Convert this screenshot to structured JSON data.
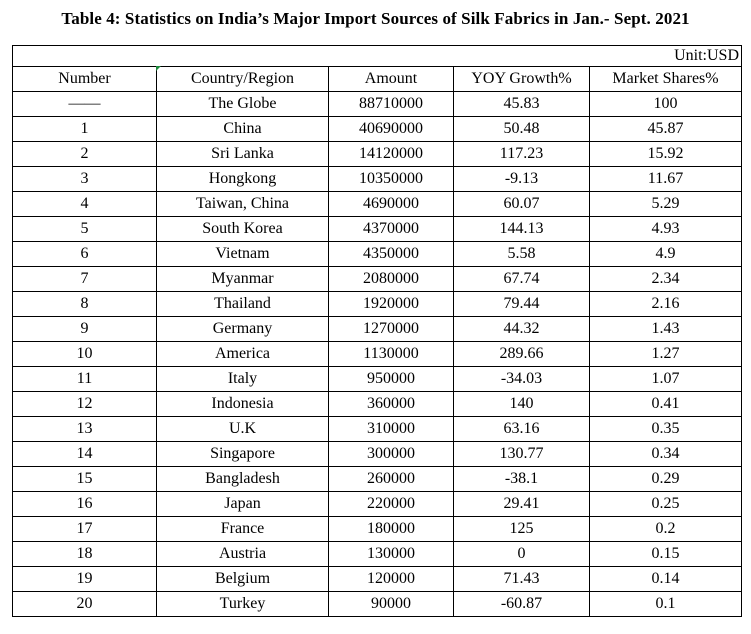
{
  "title": "Table 4: Statistics on India’s Major Import Sources of Silk Fabrics in Jan.- Sept. 2021",
  "unit": "Unit:USD",
  "headers": [
    "Number",
    "Country/Region",
    "Amount",
    "YOY Growth%",
    "Market Shares%"
  ],
  "rows": [
    [
      "——",
      "The Globe",
      "88710000",
      "45.83",
      "100"
    ],
    [
      "1",
      "China",
      "40690000",
      "50.48",
      "45.87"
    ],
    [
      "2",
      "Sri Lanka",
      "14120000",
      "117.23",
      "15.92"
    ],
    [
      "3",
      "Hongkong",
      "10350000",
      "-9.13",
      "11.67"
    ],
    [
      "4",
      "Taiwan, China",
      "4690000",
      "60.07",
      "5.29"
    ],
    [
      "5",
      "South Korea",
      "4370000",
      "144.13",
      "4.93"
    ],
    [
      "6",
      "Vietnam",
      "4350000",
      "5.58",
      "4.9"
    ],
    [
      "7",
      "Myanmar",
      "2080000",
      "67.74",
      "2.34"
    ],
    [
      "8",
      "Thailand",
      "1920000",
      "79.44",
      "2.16"
    ],
    [
      "9",
      "Germany",
      "1270000",
      "44.32",
      "1.43"
    ],
    [
      "10",
      "America",
      "1130000",
      "289.66",
      "1.27"
    ],
    [
      "11",
      "Italy",
      "950000",
      "-34.03",
      "1.07"
    ],
    [
      "12",
      "Indonesia",
      "360000",
      "140",
      "0.41"
    ],
    [
      "13",
      "U.K",
      "310000",
      "63.16",
      "0.35"
    ],
    [
      "14",
      "Singapore",
      "300000",
      "130.77",
      "0.34"
    ],
    [
      "15",
      "Bangladesh",
      "260000",
      "-38.1",
      "0.29"
    ],
    [
      "16",
      "Japan",
      "220000",
      "29.41",
      "0.25"
    ],
    [
      "17",
      "France",
      "180000",
      "125",
      "0.2"
    ],
    [
      "18",
      "Austria",
      "130000",
      "0",
      "0.15"
    ],
    [
      "19",
      "Belgium",
      "120000",
      "71.43",
      "0.14"
    ],
    [
      "20",
      "Turkey",
      "90000",
      "-60.87",
      "0.1"
    ]
  ]
}
